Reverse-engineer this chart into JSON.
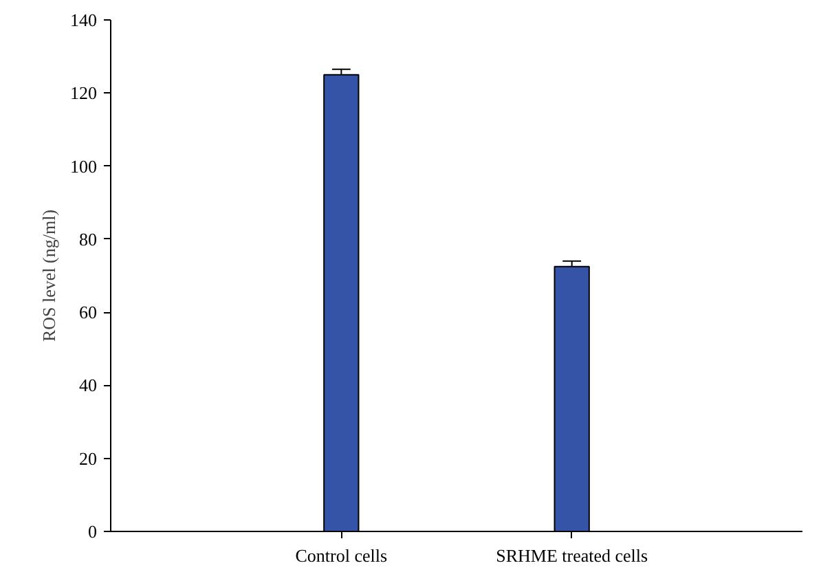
{
  "chart_data": {
    "type": "bar",
    "ylabel": "ROS level (ng/ml)",
    "categories": [
      "Control cells",
      "SRHME treated cells"
    ],
    "values": [
      125,
      72.5
    ],
    "errors": [
      1.5,
      1.5
    ],
    "color": "#3553a7",
    "ylim": [
      0,
      140
    ],
    "yticks": [
      0,
      20,
      40,
      60,
      80,
      100,
      120,
      140
    ],
    "grid": false
  }
}
